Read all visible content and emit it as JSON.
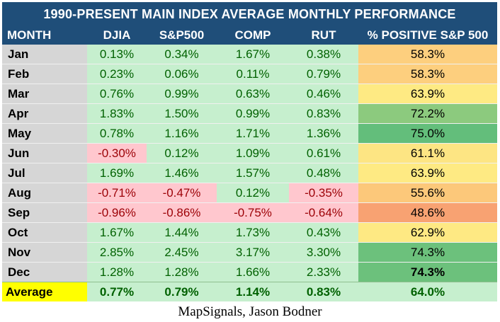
{
  "title": "1990-PRESENT MAIN INDEX AVERAGE MONTHLY PERFORMANCE",
  "columns": [
    "MONTH",
    "DJIA",
    "S&P500",
    "COMP",
    "RUT",
    "% POSITIVE S&P 500"
  ],
  "rows": [
    {
      "month": "Jan",
      "values": [
        "0.13%",
        "0.34%",
        "1.67%",
        "0.38%",
        "58.3%"
      ]
    },
    {
      "month": "Feb",
      "values": [
        "0.23%",
        "0.06%",
        "0.11%",
        "0.79%",
        "58.3%"
      ]
    },
    {
      "month": "Mar",
      "values": [
        "0.76%",
        "0.99%",
        "0.63%",
        "0.46%",
        "63.9%"
      ]
    },
    {
      "month": "Apr",
      "values": [
        "1.83%",
        "1.50%",
        "0.99%",
        "0.83%",
        "72.2%"
      ]
    },
    {
      "month": "May",
      "values": [
        "0.78%",
        "1.16%",
        "1.71%",
        "1.36%",
        "75.0%"
      ]
    },
    {
      "month": "Jun",
      "values": [
        "-0.30%",
        "0.12%",
        "1.09%",
        "0.61%",
        "61.1%"
      ]
    },
    {
      "month": "Jul",
      "values": [
        "1.69%",
        "1.46%",
        "1.57%",
        "0.48%",
        "63.9%"
      ]
    },
    {
      "month": "Aug",
      "values": [
        "-0.71%",
        "-0.47%",
        "0.12%",
        "-0.35%",
        "55.6%"
      ]
    },
    {
      "month": "Sep",
      "values": [
        "-0.96%",
        "-0.86%",
        "-0.75%",
        "-0.64%",
        "48.6%"
      ]
    },
    {
      "month": "Oct",
      "values": [
        "1.67%",
        "1.44%",
        "1.73%",
        "0.43%",
        "62.9%"
      ]
    },
    {
      "month": "Nov",
      "values": [
        "2.85%",
        "2.45%",
        "3.17%",
        "3.30%",
        "74.3%"
      ]
    },
    {
      "month": "Dec",
      "values": [
        "1.28%",
        "1.28%",
        "1.66%",
        "2.33%",
        "74.3%"
      ]
    }
  ],
  "average": {
    "label": "Average",
    "values": [
      "0.77%",
      "0.79%",
      "1.14%",
      "0.83%",
      "64.0%"
    ]
  },
  "caption": "MapSignals, Jason Bodner",
  "colors": {
    "header_bg": "#1f4e79",
    "positive_bg": "#c6efce",
    "positive_text": "#006100",
    "negative_bg": "#ffc7ce",
    "negative_text": "#9c0006",
    "month_bg": "#d6d6d6",
    "average_label_bg": "#ffff00",
    "pct_scale": {
      "48.6%": "#f8a272",
      "55.6%": "#fcc87a",
      "58.3%": "#fdcf7e",
      "61.1%": "#fde583",
      "62.9%": "#fee983",
      "63.9%": "#feea83",
      "72.2%": "#8cca7e",
      "74.3%": "#6cc17c",
      "75.0%": "#63be7b",
      "64.0%": "#c6efce"
    }
  }
}
